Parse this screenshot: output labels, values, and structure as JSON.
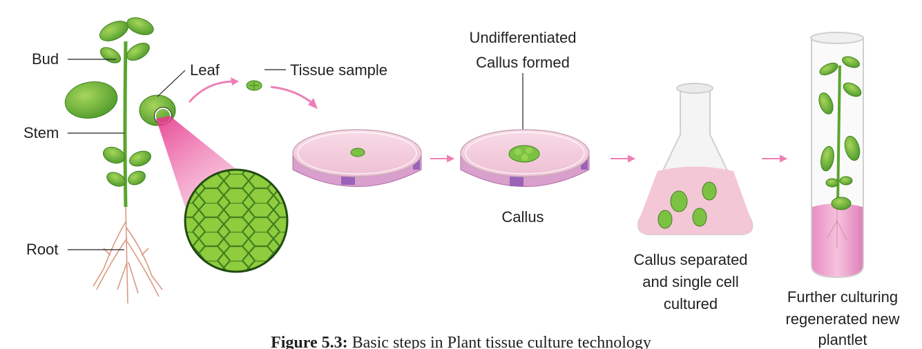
{
  "plant": {
    "bud": "Bud",
    "stem": "Stem",
    "root": "Root",
    "leaf": "Leaf"
  },
  "tissue_sample": "Tissue sample",
  "callus_top_line1": "Undifferentiated",
  "callus_top_line2": "Callus formed",
  "callus_label": "Callus",
  "flask_line1": "Callus separated",
  "flask_line2": "and single cell",
  "flask_line3": "cultured",
  "tube_line1": "Further culturing",
  "tube_line2": "regenerated new",
  "tube_line3": "plantlet",
  "caption": {
    "prefix": "Figure 5.3:",
    "text": " Basic steps in Plant tissue culture technology"
  },
  "colors": {
    "leaf": "#7cc242",
    "leaf_dark": "#4e9a2a",
    "medium": "#f3c6d8",
    "dish_band": "#d58fc4",
    "arrow": "#ee7fb6",
    "zoom": "#e83e8c"
  }
}
